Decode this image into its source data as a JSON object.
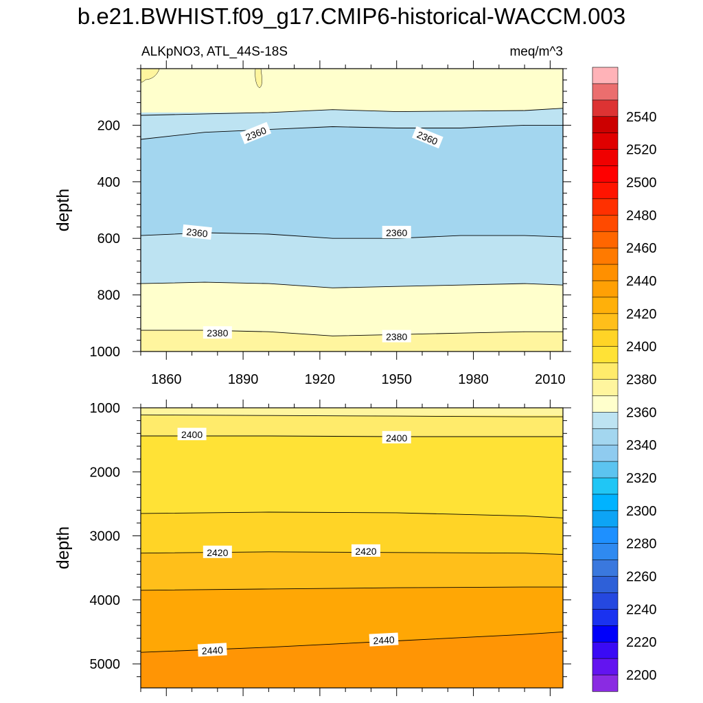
{
  "title": "b.e21.BWHIST.f09_g17.CMIP6-historical-WACCM.003",
  "subtitle_left": "ALKpNO3, ATL_44S-18S",
  "subtitle_right": "meq/m^3",
  "chart_data": [
    {
      "type": "contour",
      "panel": "upper",
      "xlabel": "",
      "ylabel": "depth",
      "xlim": [
        1850,
        2015
      ],
      "ylim": [
        1000,
        0
      ],
      "x_ticks": [
        1860,
        1890,
        1920,
        1950,
        1980,
        2010
      ],
      "y_ticks": [
        200,
        400,
        600,
        800,
        1000
      ],
      "bands": [
        {
          "color": "#FFFFCC",
          "depth_top": 0,
          "depth_bottom": 160
        },
        {
          "color": "#BDE3F2",
          "depth_top": 155,
          "depth_bottom": 205
        },
        {
          "color": "#A3D6EF",
          "depth_top": 205,
          "depth_bottom": 595
        },
        {
          "color": "#BDE3F2",
          "depth_top": 595,
          "depth_bottom": 770
        },
        {
          "color": "#FFFFCC",
          "depth_top": 770,
          "depth_bottom": 940
        },
        {
          "color": "#FFF59E",
          "depth_top": 940,
          "depth_bottom": 1000
        }
      ],
      "contour_lines": [
        {
          "x": [
            1850,
            1875,
            1900,
            1925,
            1950,
            1975,
            2000,
            2015
          ],
          "depth": [
            165,
            160,
            155,
            145,
            152,
            150,
            148,
            140
          ]
        },
        {
          "x": [
            1850,
            1875,
            1900,
            1925,
            1950,
            1975,
            2000,
            2015
          ],
          "depth": [
            250,
            225,
            215,
            205,
            210,
            210,
            200,
            200
          ]
        },
        {
          "x": [
            1850,
            1875,
            1900,
            1925,
            1950,
            1975,
            2000,
            2015
          ],
          "depth": [
            590,
            580,
            585,
            600,
            600,
            590,
            590,
            595
          ]
        },
        {
          "x": [
            1850,
            1875,
            1900,
            1925,
            1950,
            1975,
            2000,
            2015
          ],
          "depth": [
            760,
            755,
            760,
            775,
            770,
            765,
            760,
            765
          ]
        },
        {
          "x": [
            1850,
            1875,
            1900,
            1925,
            1950,
            1975,
            2000,
            2015
          ],
          "depth": [
            925,
            925,
            930,
            945,
            940,
            935,
            930,
            930
          ]
        }
      ],
      "contour_labels": [
        {
          "text": "2360",
          "x": 1895,
          "depth": 230,
          "angle": -22
        },
        {
          "text": "2360",
          "x": 1962,
          "depth": 245,
          "angle": 22
        },
        {
          "text": "2360",
          "x": 1872,
          "depth": 580,
          "angle": 6
        },
        {
          "text": "2360",
          "x": 1950,
          "depth": 580,
          "angle": 0
        },
        {
          "text": "2380",
          "x": 1880,
          "depth": 935,
          "angle": 0
        },
        {
          "text": "2380",
          "x": 1950,
          "depth": 948,
          "angle": 0
        }
      ]
    },
    {
      "type": "contour",
      "panel": "lower",
      "xlabel": "",
      "ylabel": "depth",
      "xlim": [
        1850,
        2015
      ],
      "ylim": [
        5375,
        1000
      ],
      "y_ticks": [
        1000,
        2000,
        3000,
        4000,
        5000
      ],
      "bands": [
        {
          "color": "#FFF59E",
          "depth_top": 1000,
          "depth_bottom": 1120
        },
        {
          "color": "#FFEB6B",
          "depth_top": 1120,
          "depth_bottom": 1450
        },
        {
          "color": "#FFE236",
          "depth_top": 1450,
          "depth_bottom": 2650
        },
        {
          "color": "#FFD426",
          "depth_top": 2650,
          "depth_bottom": 3280
        },
        {
          "color": "#FFBF1A",
          "depth_top": 3280,
          "depth_bottom": 3850
        },
        {
          "color": "#FFA705",
          "depth_top": 3850,
          "depth_bottom": 4800
        },
        {
          "color": "#FF9505",
          "depth_top": 4800,
          "depth_bottom": 5375
        }
      ],
      "contour_lines": [
        {
          "x": [
            1850,
            1900,
            1950,
            2000,
            2015
          ],
          "depth": [
            1110,
            1120,
            1130,
            1140,
            1140
          ]
        },
        {
          "x": [
            1850,
            1900,
            1950,
            2000,
            2015
          ],
          "depth": [
            1440,
            1440,
            1450,
            1450,
            1450
          ]
        },
        {
          "x": [
            1850,
            1900,
            1950,
            2000,
            2015
          ],
          "depth": [
            2650,
            2630,
            2640,
            2690,
            2720
          ]
        },
        {
          "x": [
            1850,
            1900,
            1950,
            2000,
            2015
          ],
          "depth": [
            3270,
            3250,
            3260,
            3270,
            3290
          ]
        },
        {
          "x": [
            1850,
            1900,
            1950,
            2000,
            2015
          ],
          "depth": [
            3850,
            3830,
            3810,
            3800,
            3800
          ]
        },
        {
          "x": [
            1850,
            1900,
            1950,
            2000,
            2015
          ],
          "depth": [
            4820,
            4740,
            4640,
            4540,
            4500
          ]
        }
      ],
      "contour_labels": [
        {
          "text": "2400",
          "x": 1870,
          "depth": 1420,
          "angle": 0
        },
        {
          "text": "2400",
          "x": 1950,
          "depth": 1470,
          "angle": 0
        },
        {
          "text": "2420",
          "x": 1880,
          "depth": 3260,
          "angle": 0
        },
        {
          "text": "2420",
          "x": 1938,
          "depth": 3240,
          "angle": 0
        },
        {
          "text": "2440",
          "x": 1878,
          "depth": 4790,
          "angle": -3
        },
        {
          "text": "2440",
          "x": 1945,
          "depth": 4630,
          "angle": -3
        }
      ]
    }
  ],
  "colorbar": {
    "levels": [
      2200,
      2220,
      2240,
      2260,
      2280,
      2300,
      2320,
      2340,
      2360,
      2380,
      2400,
      2420,
      2440,
      2460,
      2480,
      2500,
      2520,
      2540
    ],
    "colors": [
      "#8A2BE2",
      "#6314F0",
      "#3A0AF5",
      "#0000FA",
      "#1A32F0",
      "#2548E0",
      "#2E60D8",
      "#3A78DE",
      "#2F8AF0",
      "#1E90FF",
      "#0DA4F5",
      "#00B3FF",
      "#20C6F5",
      "#5CC4F0",
      "#8FCBEF",
      "#A3D6EF",
      "#BDE3F2",
      "#FFFFCC",
      "#FFF59E",
      "#FFEB6B",
      "#FFE236",
      "#FFD426",
      "#FFBF1A",
      "#FFB00A",
      "#FFA005",
      "#FF9000",
      "#FF7A00",
      "#FF6600",
      "#FF4A00",
      "#FF3000",
      "#FF1400",
      "#FF0000",
      "#F00000",
      "#E00000",
      "#CC0000",
      "#DD3333",
      "#EB6E6E",
      "#FFB3B8"
    ],
    "tick_labels": [
      "2200",
      "2220",
      "2240",
      "2260",
      "2280",
      "2300",
      "2320",
      "2340",
      "2360",
      "2380",
      "2400",
      "2420",
      "2440",
      "2460",
      "2480",
      "2500",
      "2520",
      "2540"
    ]
  }
}
